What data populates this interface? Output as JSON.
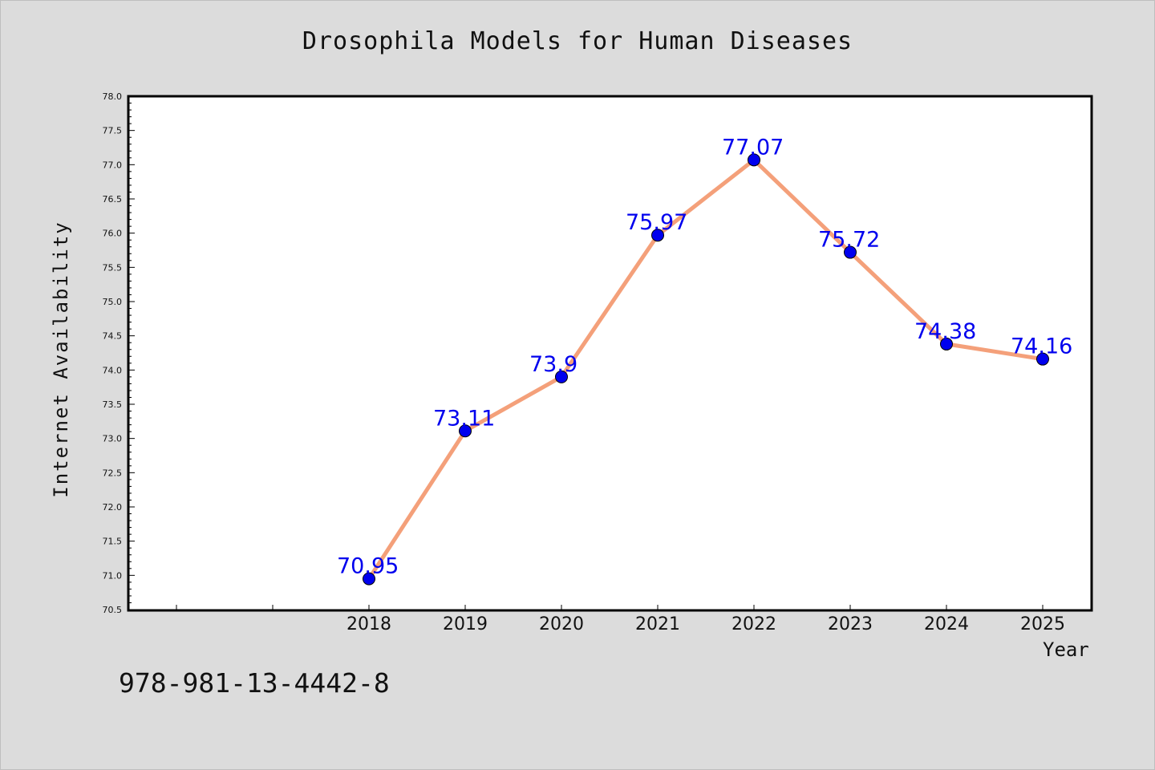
{
  "chart_data": {
    "type": "line",
    "title": "Drosophila Models for Human Diseases",
    "xlabel": "Year",
    "ylabel": "Internet Availability",
    "x": [
      "2018",
      "2019",
      "2020",
      "2021",
      "2022",
      "2023",
      "2024",
      "2025"
    ],
    "series": [
      {
        "values": [
          70.95,
          73.11,
          73.9,
          75.97,
          77.07,
          75.72,
          74.38,
          74.16
        ],
        "labels": [
          "70.95",
          "73.11",
          "73.9",
          "75.97",
          "77.07",
          "75.72",
          "74.38",
          "74.16"
        ],
        "line_color": "#f4a07a",
        "marker_color": "#0000ee"
      }
    ],
    "ylim": [
      70.5,
      78.0
    ],
    "yticks": [
      "70.5",
      "71.0",
      "71.5",
      "72.0",
      "72.5",
      "73.0",
      "73.5",
      "74.0",
      "74.5",
      "75.0",
      "75.5",
      "76.0",
      "76.5",
      "77.0",
      "77.5",
      "78.0"
    ],
    "grid": false,
    "legend": "none"
  },
  "annotation": "978-981-13-4442-8"
}
